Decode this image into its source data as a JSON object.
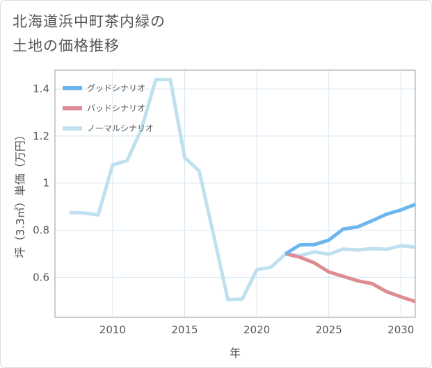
{
  "title_lines": [
    "北海道浜中町茶内緑の",
    "土地の価格推移"
  ],
  "chart_data": {
    "type": "line",
    "title": "北海道浜中町茶内緑の土地の価格推移",
    "xlabel": "年",
    "ylabel": "坪（3.3㎡）単価（万円）",
    "xlim": [
      2006,
      2031
    ],
    "ylim": [
      0.43,
      1.48
    ],
    "x_ticks": [
      2010,
      2015,
      2020,
      2025,
      2030
    ],
    "y_ticks": [
      0.6,
      0.8,
      1,
      1.2,
      1.4
    ],
    "y_tick_labels": [
      "0.6",
      "0.8",
      "1",
      "1.2",
      "1.4"
    ],
    "grid": true,
    "legend_position": "top-left",
    "series": [
      {
        "name": "グッドシナリオ",
        "color": "#6bb6ee",
        "x": [
          2022,
          2023,
          2024,
          2025,
          2026,
          2027,
          2028,
          2029,
          2030,
          2031
        ],
        "y": [
          0.7,
          0.738,
          0.739,
          0.758,
          0.805,
          0.814,
          0.84,
          0.868,
          0.886,
          0.91
        ]
      },
      {
        "name": "バッドシナリオ",
        "color": "#dd8c93",
        "x": [
          2022,
          2023,
          2024,
          2025,
          2026,
          2027,
          2028,
          2029,
          2030,
          2031
        ],
        "y": [
          0.7,
          0.685,
          0.661,
          0.623,
          0.604,
          0.585,
          0.573,
          0.539,
          0.517,
          0.497
        ]
      },
      {
        "name": "ノーマルシナリオ",
        "color": "#bfe0ee",
        "x": [
          2007,
          2008,
          2009,
          2010,
          2011,
          2012,
          2013,
          2014,
          2015,
          2016,
          2017,
          2018,
          2019,
          2020,
          2021,
          2022,
          2023,
          2024,
          2025,
          2026,
          2027,
          2028,
          2029,
          2030,
          2031
        ],
        "y": [
          0.875,
          0.873,
          0.865,
          1.078,
          1.095,
          1.23,
          1.44,
          1.44,
          1.108,
          1.053,
          0.782,
          0.505,
          0.508,
          0.632,
          0.643,
          0.7,
          0.692,
          0.708,
          0.698,
          0.72,
          0.716,
          0.722,
          0.719,
          0.734,
          0.728
        ]
      }
    ]
  }
}
